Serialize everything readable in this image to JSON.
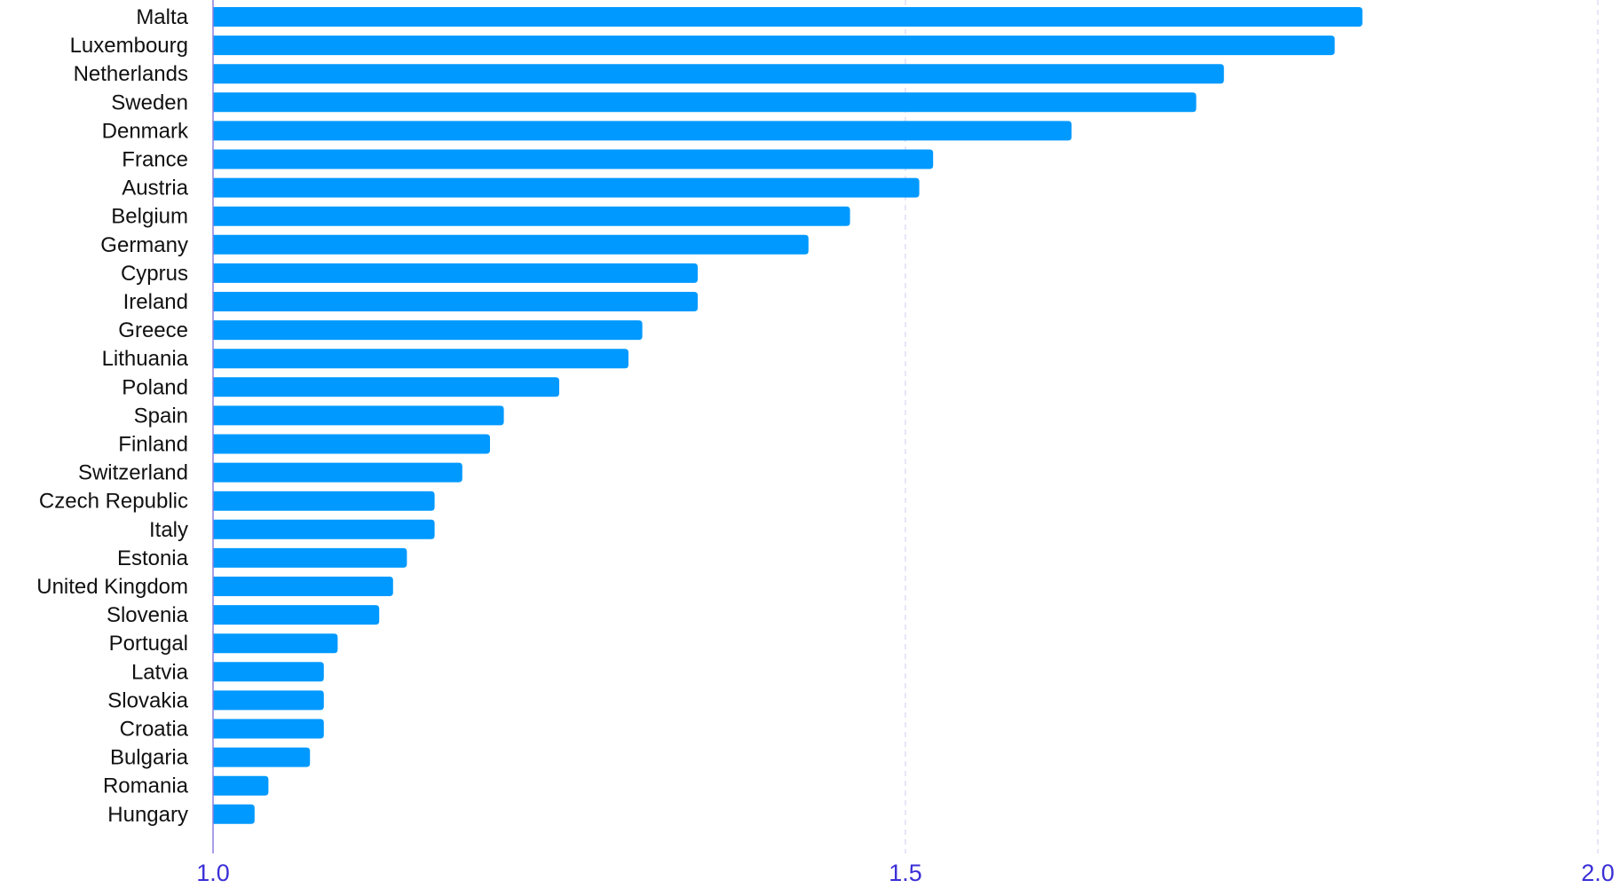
{
  "chart_data": {
    "type": "bar",
    "orientation": "horizontal",
    "title": "",
    "xlabel": "",
    "ylabel": "",
    "xlim": [
      1.0,
      2.0
    ],
    "xticks": [
      "1.0",
      "1.5",
      "2.0"
    ],
    "grid": true,
    "categories": [
      "Malta",
      "Luxembourg",
      "Netherlands",
      "Sweden",
      "Denmark",
      "France",
      "Austria",
      "Belgium",
      "Germany",
      "Cyprus",
      "Ireland",
      "Greece",
      "Lithuania",
      "Poland",
      "Spain",
      "Finland",
      "Switzerland",
      "Czech Republic",
      "Italy",
      "Estonia",
      "United Kingdom",
      "Slovenia",
      "Portugal",
      "Latvia",
      "Slovakia",
      "Croatia",
      "Bulgaria",
      "Romania",
      "Hungary"
    ],
    "values": [
      1.83,
      1.81,
      1.73,
      1.71,
      1.62,
      1.52,
      1.51,
      1.46,
      1.43,
      1.35,
      1.35,
      1.31,
      1.3,
      1.25,
      1.21,
      1.2,
      1.18,
      1.16,
      1.16,
      1.14,
      1.13,
      1.12,
      1.09,
      1.08,
      1.08,
      1.08,
      1.07,
      1.04,
      1.03
    ],
    "colors": {
      "bar": "#0099ff",
      "axis": "#8a7fe0",
      "grid": "#d8d4f4",
      "tick": "#3a2fd6"
    }
  }
}
